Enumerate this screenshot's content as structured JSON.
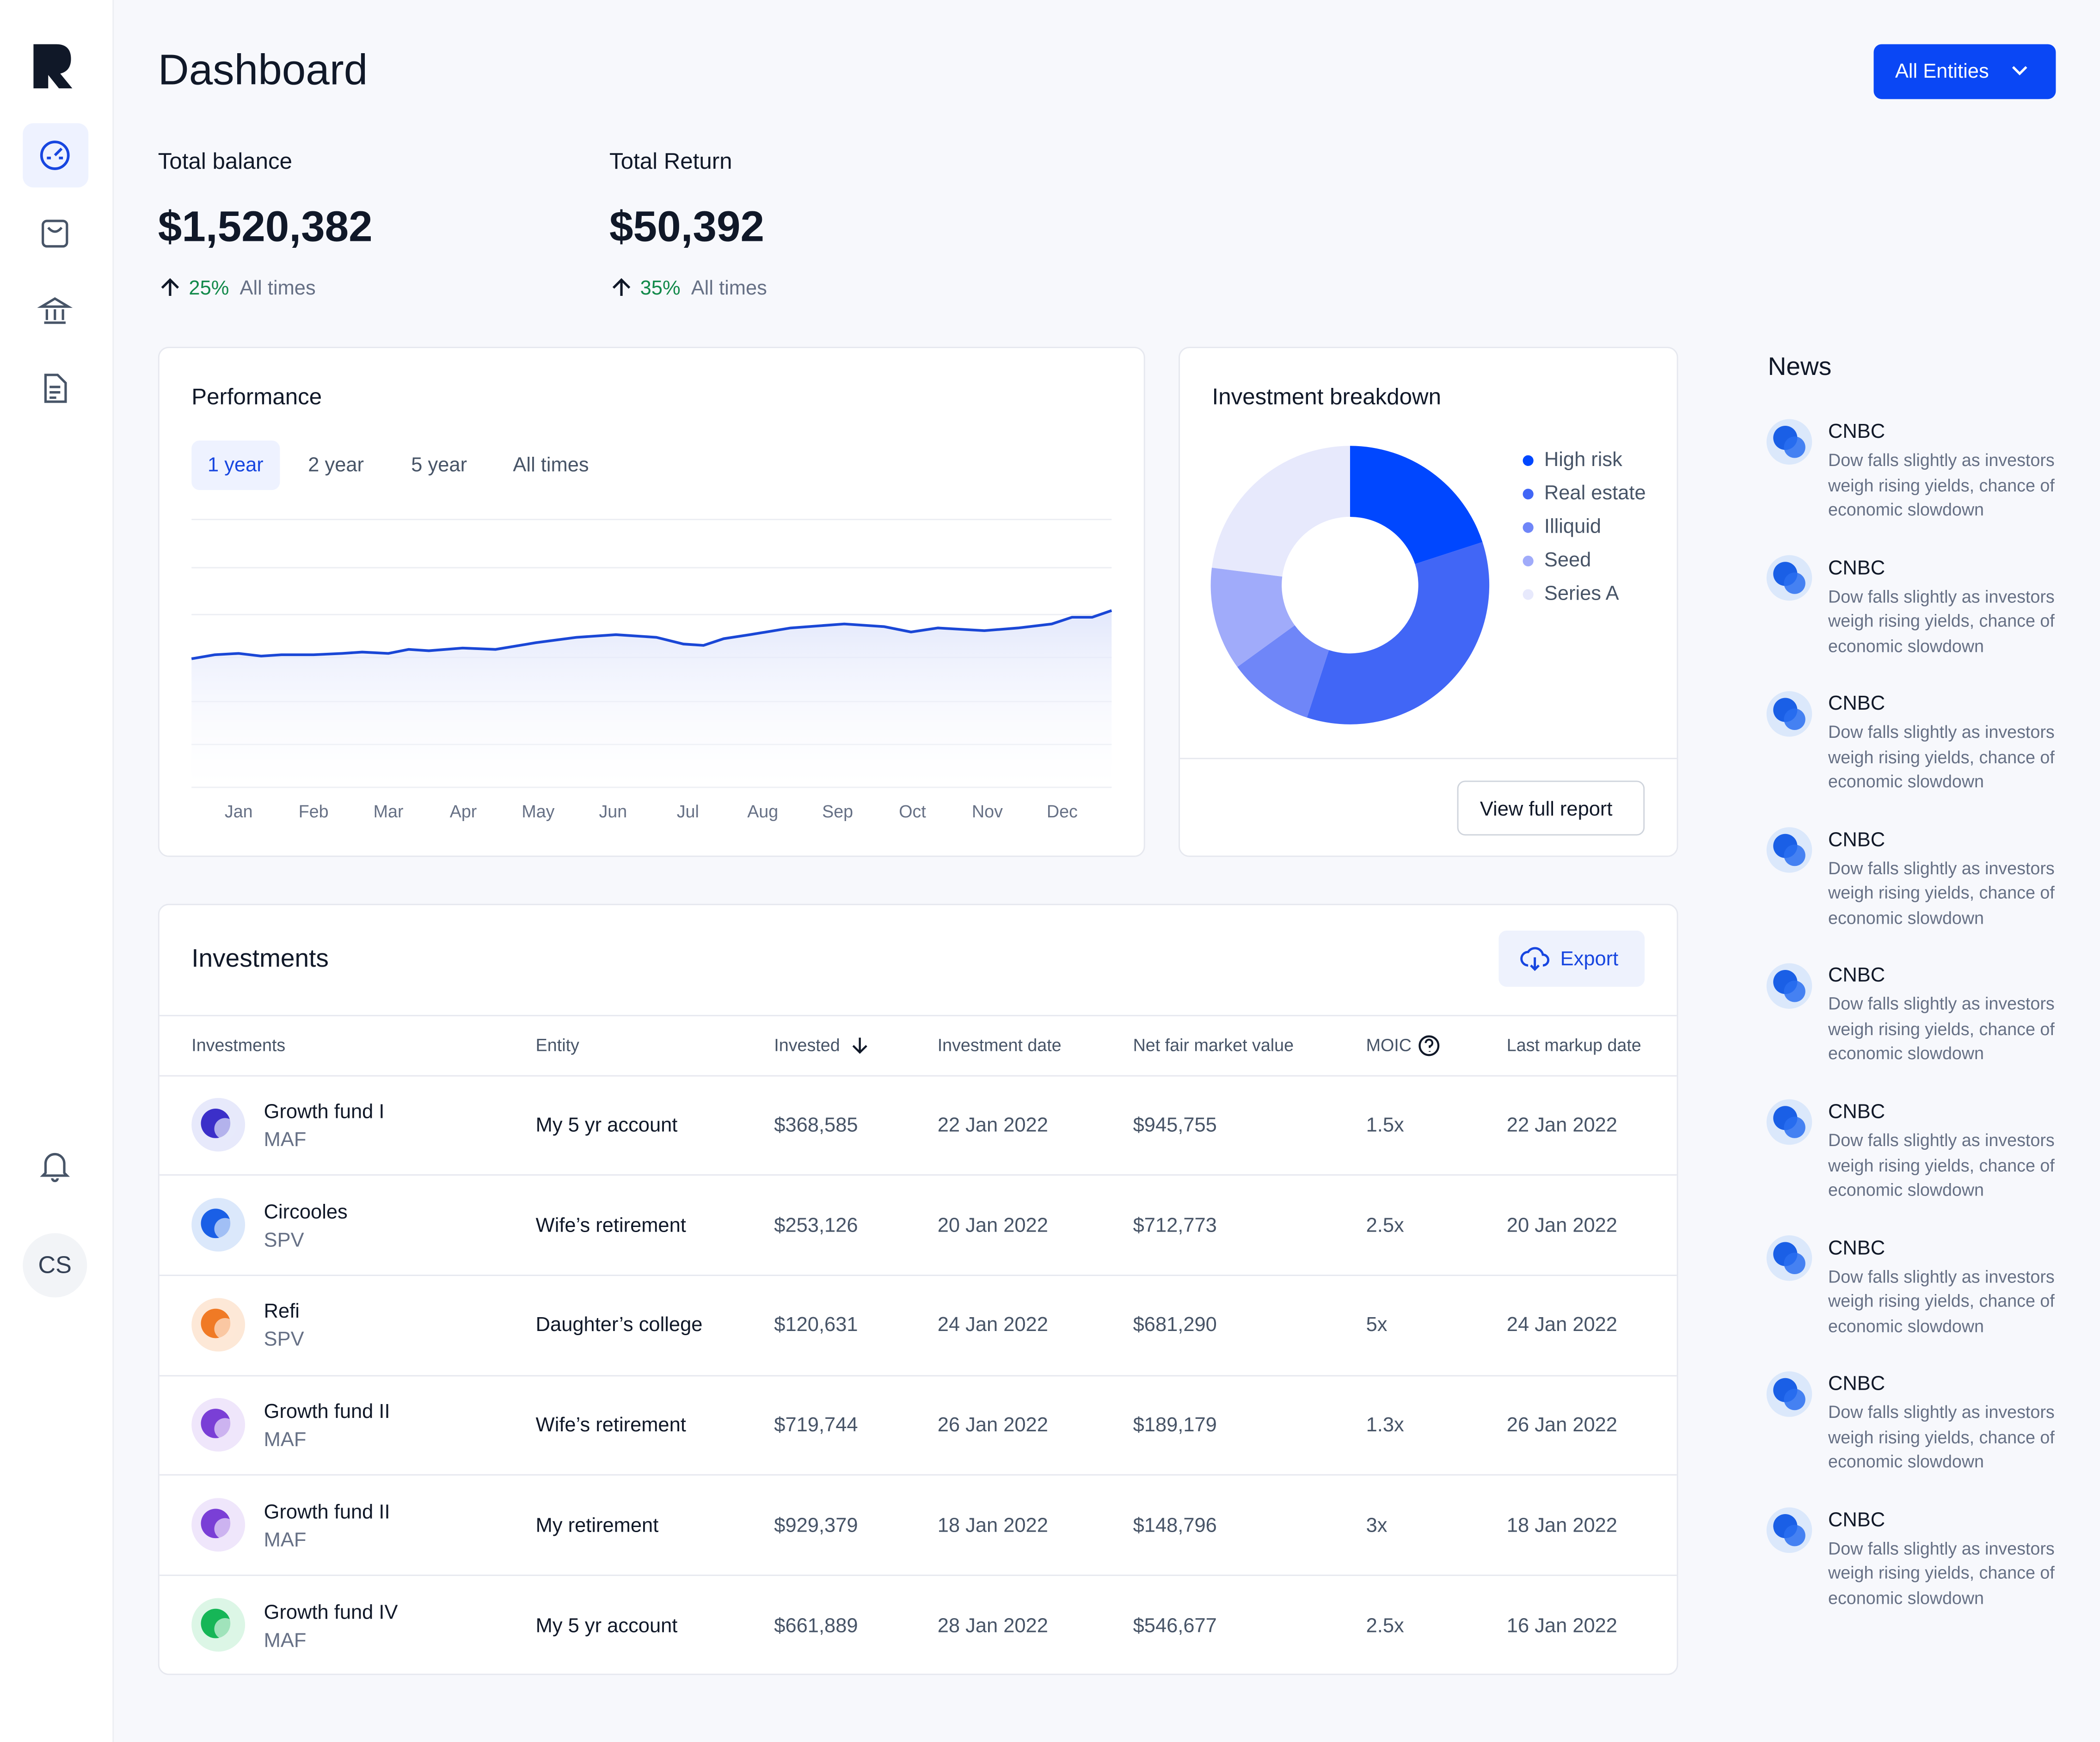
{
  "header": {
    "title": "Dashboard",
    "entity_button": "All Entities"
  },
  "sidebar": {
    "avatar": "CS"
  },
  "stats": [
    {
      "label": "Total balance",
      "value": "$1,520,382",
      "change": "25%",
      "period": "All times"
    },
    {
      "label": "Total Return",
      "value": "$50,392",
      "change": "35%",
      "period": "All times"
    }
  ],
  "performance_tabs": [
    "1 year",
    "2 year",
    "5 year",
    "All times"
  ],
  "chart_data": [
    {
      "type": "line",
      "title": "Performance",
      "area": true,
      "x": [
        -0.63,
        -0.32,
        0,
        0.3,
        0.57,
        1.0,
        1.38,
        1.65,
        2.0,
        2.27,
        2.54,
        2.99,
        3.43,
        3.97,
        4.51,
        5.04,
        5.58,
        5.94,
        6.21,
        6.48,
        6.83,
        7.37,
        8.09,
        8.62,
        8.98,
        9.34,
        9.96,
        10.41,
        10.86,
        11.13,
        11.4,
        11.66
      ],
      "series": [
        {
          "color": "#1a47d6",
          "values": [
            48,
            49.5,
            50,
            49,
            49.5,
            49.5,
            50,
            50.5,
            50,
            51.5,
            51,
            52,
            51.5,
            54,
            56,
            57,
            56,
            53.5,
            53,
            55.5,
            57,
            59.5,
            61,
            60,
            58,
            59.5,
            58.5,
            59.5,
            61,
            63.5,
            63.5,
            66
          ]
        }
      ],
      "xlim": [
        -0.63,
        11.66
      ],
      "ylim": [
        0,
        100
      ],
      "xticks": [
        {
          "value": 0,
          "label": "Jan"
        },
        {
          "value": 1,
          "label": "Feb"
        },
        {
          "value": 2,
          "label": "Mar"
        },
        {
          "value": 3,
          "label": "Apr"
        },
        {
          "value": 4,
          "label": "May"
        },
        {
          "value": 5,
          "label": "Jun"
        },
        {
          "value": 6,
          "label": "Jul"
        },
        {
          "value": 7,
          "label": "Aug"
        },
        {
          "value": 8,
          "label": "Sep"
        },
        {
          "value": 9,
          "label": "Oct"
        },
        {
          "value": 10,
          "label": "Nov"
        },
        {
          "value": 11,
          "label": "Dec"
        }
      ]
    },
    {
      "type": "donut",
      "title": "Investment breakdown",
      "categories": [
        "High risk",
        "Real estate",
        "Illiquid",
        "Seed",
        "Series A"
      ],
      "values": [
        20,
        35,
        10,
        12,
        23
      ],
      "colors": [
        "#0047ff",
        "#4166f6",
        "#6f86f8",
        "#a0abfa",
        "#e7e9fc"
      ],
      "legend": "right"
    }
  ],
  "report_button": "View full report",
  "investments": {
    "title": "Investments",
    "export": "Export",
    "columns": [
      "Investments",
      "Entity",
      "Invested",
      "Investment date",
      "Net fair market value",
      "MOIC",
      "Last markup date"
    ],
    "rows": [
      [
        "Growth fund I",
        "MAF",
        "My 5 yr account",
        "$368,585",
        "22 Jan 2022",
        "$945,755",
        "1.5x",
        "22 Jan 2022"
      ],
      [
        "Circooles",
        "SPV",
        "Wife’s retirement",
        "$253,126",
        "20 Jan 2022",
        "$712,773",
        "2.5x",
        "20 Jan 2022"
      ],
      [
        "Refi",
        "SPV",
        "Daughter’s college",
        "$120,631",
        "24 Jan 2022",
        "$681,290",
        "5x",
        "24 Jan 2022"
      ],
      [
        "Growth fund II",
        "MAF",
        "Wife’s retirement",
        "$719,744",
        "26 Jan 2022",
        "$189,179",
        "1.3x",
        "26 Jan 2022"
      ],
      [
        "Growth fund II",
        "MAF",
        "My retirement",
        "$929,379",
        "18 Jan 2022",
        "$148,796",
        "3x",
        "18 Jan 2022"
      ],
      [
        "Growth fund IV",
        "MAF",
        "My 5 yr account",
        "$661,889",
        "28 Jan 2022",
        "$546,677",
        "2.5x",
        "16 Jan 2022"
      ]
    ]
  },
  "news": {
    "title": "News",
    "items": [
      {
        "source": "CNBC",
        "headline": "Dow falls slightly as investors weigh rising yields, chance of economic slowdown"
      },
      {
        "source": "CNBC",
        "headline": "Dow falls slightly as investors weigh rising yields, chance of economic slowdown"
      },
      {
        "source": "CNBC",
        "headline": "Dow falls slightly as investors weigh rising yields, chance of economic slowdown"
      },
      {
        "source": "CNBC",
        "headline": "Dow falls slightly as investors weigh rising yields, chance of economic slowdown"
      },
      {
        "source": "CNBC",
        "headline": "Dow falls slightly as investors weigh rising yields, chance of economic slowdown"
      },
      {
        "source": "CNBC",
        "headline": "Dow falls slightly as investors weigh rising yields, chance of economic slowdown"
      },
      {
        "source": "CNBC",
        "headline": "Dow falls slightly as investors weigh rising yields, chance of economic slowdown"
      },
      {
        "source": "CNBC",
        "headline": "Dow falls slightly as investors weigh rising yields, chance of economic slowdown"
      },
      {
        "source": "CNBC",
        "headline": "Dow falls slightly as investors weigh rising yields, chance of economic slowdown"
      }
    ]
  }
}
